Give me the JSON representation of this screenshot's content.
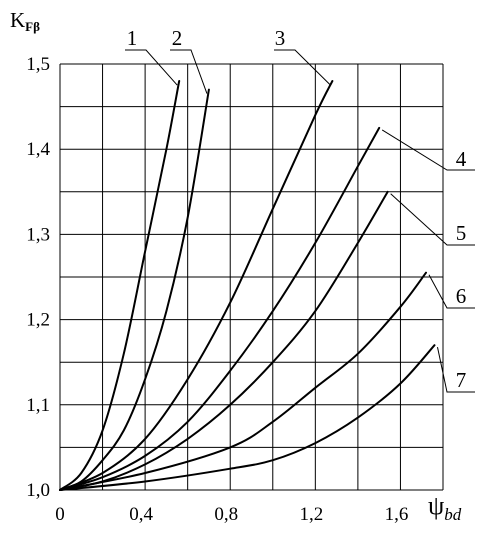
{
  "chart_data": {
    "type": "line",
    "title": "",
    "xlabel": "ψ",
    "xlabel_sub": "bd",
    "ylabel": "K",
    "ylabel_sub": "Fβ",
    "xlim": [
      0,
      1.8
    ],
    "ylim": [
      1.0,
      1.5
    ],
    "x_ticks": [
      0,
      0.4,
      0.8,
      1.2,
      1.6
    ],
    "x_tick_labels": [
      "0",
      "0,4",
      "0,8",
      "1,2",
      "1,6"
    ],
    "y_ticks": [
      1.0,
      1.1,
      1.2,
      1.3,
      1.4,
      1.5
    ],
    "y_tick_labels": [
      "1,0",
      "1,1",
      "1,2",
      "1,3",
      "1,4",
      "1,5"
    ],
    "grid": true,
    "series": [
      {
        "name": "1",
        "x": [
          0,
          0.1,
          0.2,
          0.3,
          0.4,
          0.5,
          0.56
        ],
        "y": [
          1.0,
          1.02,
          1.07,
          1.16,
          1.28,
          1.4,
          1.48
        ]
      },
      {
        "name": "2",
        "x": [
          0,
          0.1,
          0.2,
          0.3,
          0.4,
          0.5,
          0.6,
          0.7
        ],
        "y": [
          1.0,
          1.01,
          1.035,
          1.07,
          1.13,
          1.21,
          1.32,
          1.47
        ]
      },
      {
        "name": "3",
        "x": [
          0,
          0.2,
          0.4,
          0.6,
          0.8,
          1.0,
          1.2,
          1.28
        ],
        "y": [
          1.0,
          1.02,
          1.06,
          1.13,
          1.22,
          1.33,
          1.44,
          1.48
        ]
      },
      {
        "name": "4",
        "x": [
          0,
          0.2,
          0.4,
          0.6,
          0.8,
          1.0,
          1.2,
          1.4,
          1.5
        ],
        "y": [
          1.0,
          1.015,
          1.04,
          1.08,
          1.14,
          1.21,
          1.29,
          1.38,
          1.425
        ]
      },
      {
        "name": "5",
        "x": [
          0,
          0.2,
          0.4,
          0.6,
          0.8,
          1.0,
          1.2,
          1.4,
          1.54
        ],
        "y": [
          1.0,
          1.01,
          1.03,
          1.06,
          1.1,
          1.15,
          1.21,
          1.29,
          1.35
        ]
      },
      {
        "name": "6",
        "x": [
          0,
          0.4,
          0.8,
          1.0,
          1.2,
          1.4,
          1.6,
          1.72
        ],
        "y": [
          1.0,
          1.02,
          1.05,
          1.08,
          1.12,
          1.16,
          1.215,
          1.255
        ]
      },
      {
        "name": "7",
        "x": [
          0,
          0.4,
          0.8,
          1.0,
          1.2,
          1.4,
          1.6,
          1.76
        ],
        "y": [
          1.0,
          1.01,
          1.025,
          1.035,
          1.055,
          1.085,
          1.125,
          1.17
        ]
      }
    ]
  }
}
